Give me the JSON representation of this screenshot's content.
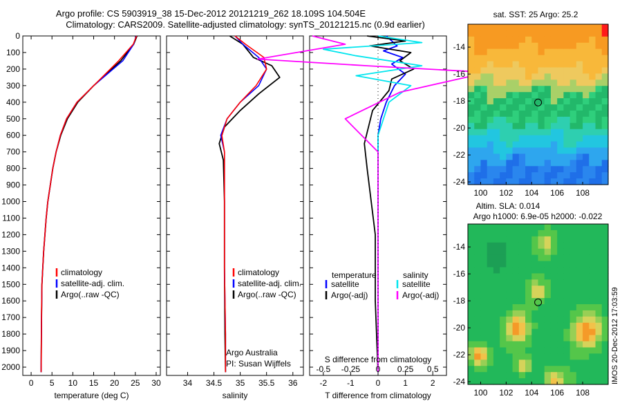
{
  "header": {
    "title_line1": "Argo profile: CS 5903919_38 15-Dec-2012 20121219_262 18.109S 104.504E",
    "title_line2": "Climatology: CARS2009. Satellite-adjusted climatology: synTS_20121215.nc (0.9d earlier)"
  },
  "side_label": "IMOS 20-Dec-2012 17:03:59",
  "colors": {
    "climatology": "#ff0000",
    "satellite": "#0000ff",
    "argo": "#000000",
    "cyan": "#00e5ee",
    "magenta": "#ff00ff"
  },
  "depth_ticks": [
    0,
    100,
    200,
    300,
    400,
    500,
    600,
    700,
    800,
    900,
    1000,
    1100,
    1200,
    1300,
    1400,
    1500,
    1600,
    1700,
    1800,
    1900,
    2000
  ],
  "chart_data": [
    {
      "type": "line",
      "id": "temperature",
      "xlabel": "temperature (deg C)",
      "xlim": [
        -2,
        31
      ],
      "ylim": [
        2050,
        0
      ],
      "xticks": [
        0,
        5,
        10,
        15,
        20,
        25,
        30
      ],
      "legend": [
        "climatology",
        "satellite-adj. clim.",
        "Argo(..raw -QC)"
      ],
      "series": [
        {
          "name": "climatology",
          "x": [
            25.3,
            24.5,
            21,
            15,
            11,
            8.5,
            7,
            6,
            5.2,
            4.6,
            4,
            3.6,
            3.3,
            3,
            2.8,
            2.6,
            2.5,
            2.4
          ],
          "y": [
            0,
            50,
            150,
            300,
            400,
            500,
            600,
            700,
            800,
            900,
            1000,
            1100,
            1200,
            1300,
            1400,
            1500,
            1700,
            2030
          ]
        },
        {
          "name": "satellite-adj. clim.",
          "x": [
            25.2,
            24.6,
            22,
            15,
            11,
            8.5,
            7,
            6,
            5.2,
            4.6,
            4,
            3.6,
            3.3,
            3,
            2.8,
            2.6,
            2.5,
            2.4
          ],
          "y": [
            0,
            50,
            150,
            300,
            400,
            500,
            600,
            700,
            800,
            900,
            1000,
            1100,
            1200,
            1300,
            1400,
            1500,
            1700,
            2030
          ]
        },
        {
          "name": "Argo(..raw -QC)",
          "x": [
            25.4,
            24.6,
            21.5,
            15,
            11.2,
            8.7,
            7.1,
            6,
            5.2,
            4.6,
            4,
            3.6,
            3.3,
            3,
            2.8,
            2.6,
            2.5,
            2.4
          ],
          "y": [
            0,
            50,
            150,
            300,
            400,
            500,
            600,
            700,
            800,
            900,
            1000,
            1100,
            1200,
            1300,
            1400,
            1500,
            1700,
            2030
          ]
        }
      ]
    },
    {
      "type": "line",
      "id": "salinity",
      "xlabel": "salinity",
      "xlim": [
        33.6,
        36.2
      ],
      "ylim": [
        2050,
        0
      ],
      "xticks": [
        34,
        34.5,
        35,
        35.5,
        36
      ],
      "legend": [
        "climatology",
        "satellite-adj. clim.",
        "Argo(..raw -QC)"
      ],
      "annotation": [
        "Argo Australia",
        "PI: Susan Wijffels"
      ],
      "series": [
        {
          "name": "climatology",
          "x": [
            34.9,
            35.1,
            35.45,
            35.5,
            35.3,
            35,
            34.75,
            34.65,
            34.7,
            34.7,
            34.7,
            34.7,
            34.72,
            34.72
          ],
          "y": [
            0,
            50,
            130,
            200,
            300,
            400,
            500,
            600,
            700,
            800,
            1000,
            1400,
            1800,
            2030
          ]
        },
        {
          "name": "satellite-adj. clim.",
          "x": [
            34.9,
            35.05,
            35.35,
            35.5,
            35.35,
            35,
            34.75,
            34.63,
            34.7,
            34.7,
            34.7,
            34.7,
            34.72,
            34.72
          ],
          "y": [
            0,
            50,
            130,
            200,
            300,
            400,
            500,
            600,
            700,
            800,
            1000,
            1400,
            1800,
            2030
          ]
        },
        {
          "name": "Argo(..raw -QC)",
          "x": [
            34.8,
            35.05,
            35.25,
            35.6,
            35.75,
            35.35,
            35,
            34.7,
            34.6,
            34.68,
            34.7,
            34.7,
            34.71,
            34.72
          ],
          "y": [
            0,
            50,
            130,
            180,
            250,
            350,
            450,
            550,
            650,
            750,
            1000,
            1400,
            1800,
            2030
          ]
        }
      ]
    },
    {
      "type": "line",
      "id": "difference",
      "xlabel": "T difference from climatology",
      "xlabel_top": "S difference from climatology",
      "xlim": [
        -2.5,
        2.5
      ],
      "ylim": [
        2050,
        0
      ],
      "xticks": [
        -2,
        -1,
        0,
        1,
        2
      ],
      "xticks_top": [
        "-0.5",
        "-0.25",
        "0",
        "0.25",
        "0.5"
      ],
      "legend_temperature": [
        "temperature",
        "satellite",
        "Argo(-adj)"
      ],
      "legend_salinity": [
        "salinity",
        "satellite",
        "Argo(-adj)"
      ],
      "series": [
        {
          "name": "T satellite",
          "x": [
            0.3,
            0.7,
            0.2,
            0.9,
            0.5,
            1.0,
            0.6,
            0.3,
            0.1,
            0.0,
            0.0,
            0.0,
            0.0,
            0.0
          ],
          "y": [
            0,
            60,
            90,
            130,
            170,
            230,
            300,
            400,
            500,
            600,
            800,
            1200,
            1600,
            2030
          ]
        },
        {
          "name": "T Argo(-adj)",
          "x": [
            -0.4,
            1.0,
            -0.3,
            1.2,
            0.8,
            1.3,
            0.5,
            0.4,
            -0.2,
            -0.5,
            -0.4,
            -0.1,
            -0.1,
            0.0
          ],
          "y": [
            0,
            30,
            60,
            100,
            150,
            200,
            260,
            330,
            450,
            650,
            800,
            1200,
            1600,
            2030
          ]
        },
        {
          "name": "S satellite",
          "x": [
            0.0,
            0.4,
            -0.5,
            -0.2,
            0.4,
            -0.2,
            0.3,
            0.1,
            0.0,
            0.0,
            0.0
          ],
          "y": [
            0,
            40,
            80,
            120,
            180,
            240,
            300,
            400,
            600,
            1200,
            2030
          ]
        },
        {
          "name": "S Argo(-adj)",
          "x": [
            -0.6,
            -0.3,
            -1.1,
            -0.1,
            1.0,
            0.6,
            0.2,
            -0.3,
            0.0,
            0.0,
            0.0
          ],
          "y": [
            0,
            50,
            140,
            180,
            220,
            280,
            340,
            500,
            700,
            1200,
            2030
          ]
        }
      ]
    },
    {
      "type": "heatmap",
      "id": "sst_map",
      "title": "sat. SST: 25 Argo: 25.2",
      "xlim": [
        99,
        110
      ],
      "ylim": [
        -24.2,
        -12.3
      ],
      "xticks": [
        100,
        102,
        104,
        106,
        108
      ],
      "yticks": [
        -14,
        -16,
        -18,
        -20,
        -22,
        -24
      ],
      "marker": {
        "lon": 104.504,
        "lat": -18.109
      }
    },
    {
      "type": "heatmap",
      "id": "sla_map",
      "title": "Altim. SLA: 0.014",
      "subtitle": "Argo h1000: 6.9e-05 h2000: -0.022",
      "xlim": [
        99,
        110
      ],
      "ylim": [
        -24.2,
        -12.3
      ],
      "xticks": [
        100,
        102,
        104,
        106,
        108
      ],
      "yticks": [
        -14,
        -16,
        -18,
        -20,
        -22,
        -24
      ],
      "marker": {
        "lon": 104.504,
        "lat": -18.109
      }
    }
  ]
}
